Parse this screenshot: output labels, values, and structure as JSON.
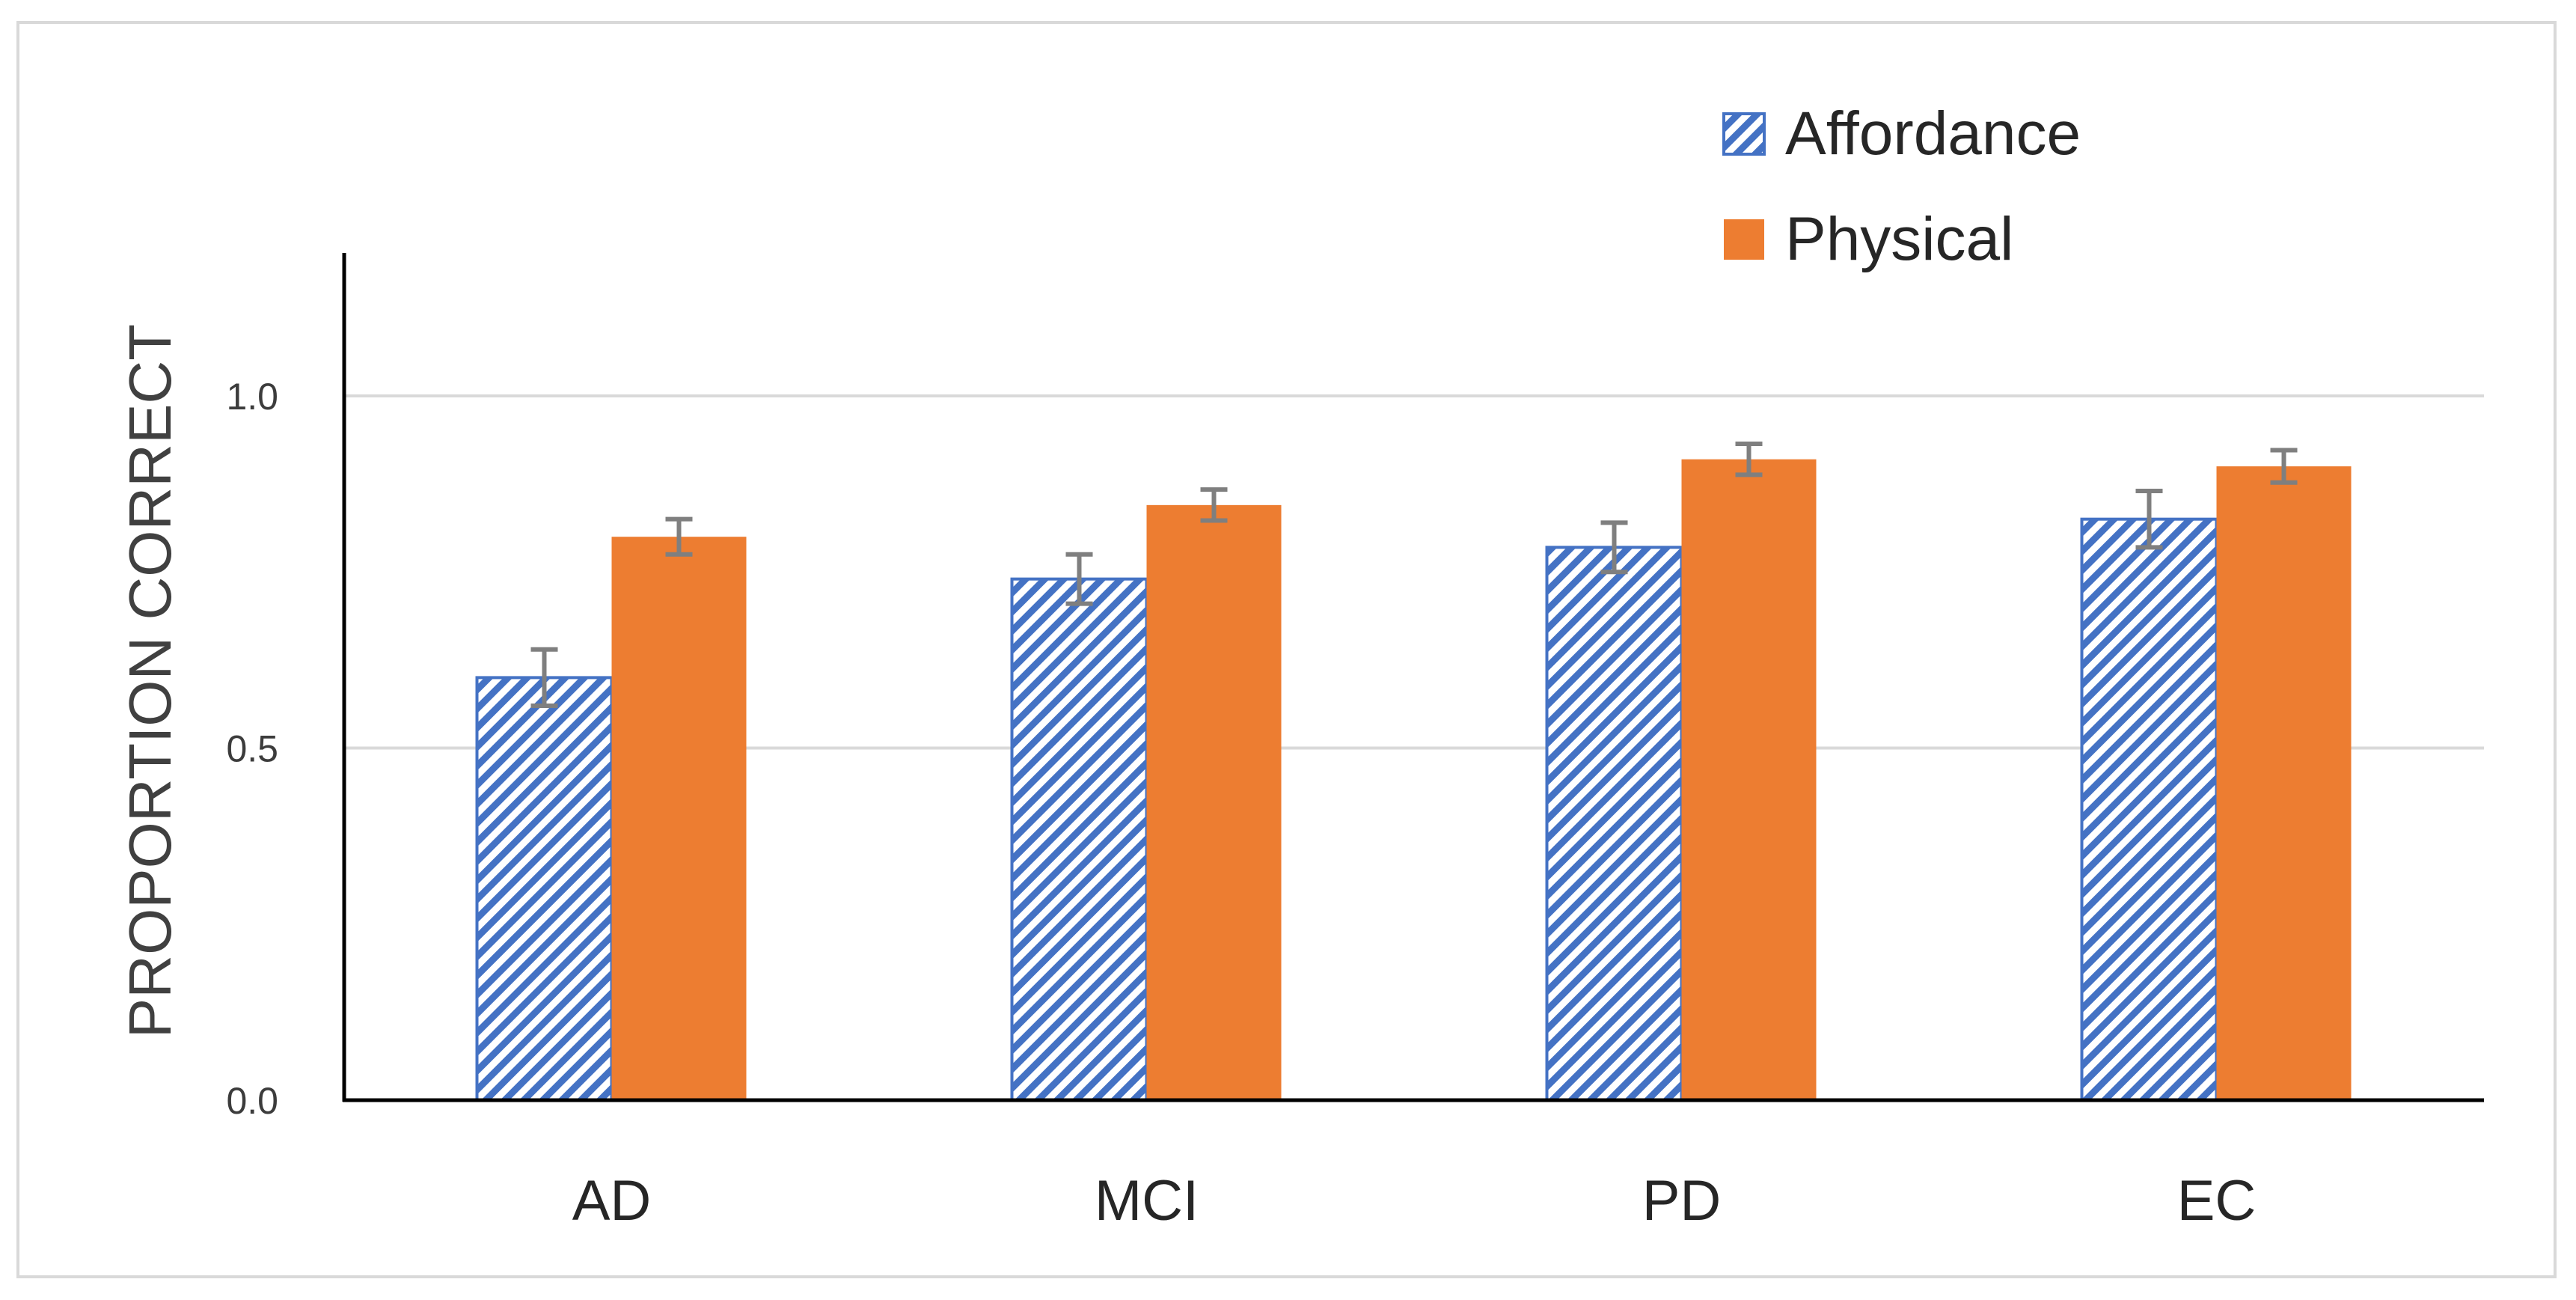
{
  "chart_data": {
    "type": "bar",
    "title": "",
    "xlabel": "",
    "ylabel": "PROPORTION CORRECT",
    "ylim": [
      0,
      1.2
    ],
    "yticks": [
      0.0,
      0.5,
      1.0
    ],
    "ytick_labels": [
      "0.0",
      "0.5",
      "1.0"
    ],
    "grid": true,
    "legend_position": "top-right",
    "categories": [
      "AD",
      "MCI",
      "PD",
      "EC"
    ],
    "series": [
      {
        "name": "Affordance",
        "values": [
          0.6,
          0.74,
          0.785,
          0.825
        ],
        "errors": [
          0.04,
          0.035,
          0.035,
          0.04
        ],
        "color": "#4472c4",
        "pattern": "diagonal-stripes"
      },
      {
        "name": "Physical",
        "values": [
          0.8,
          0.845,
          0.91,
          0.9
        ],
        "errors": [
          0.025,
          0.022,
          0.022,
          0.023
        ],
        "color": "#ed7d31",
        "pattern": "solid"
      }
    ],
    "error_bar_color": "#7f7f7f"
  }
}
